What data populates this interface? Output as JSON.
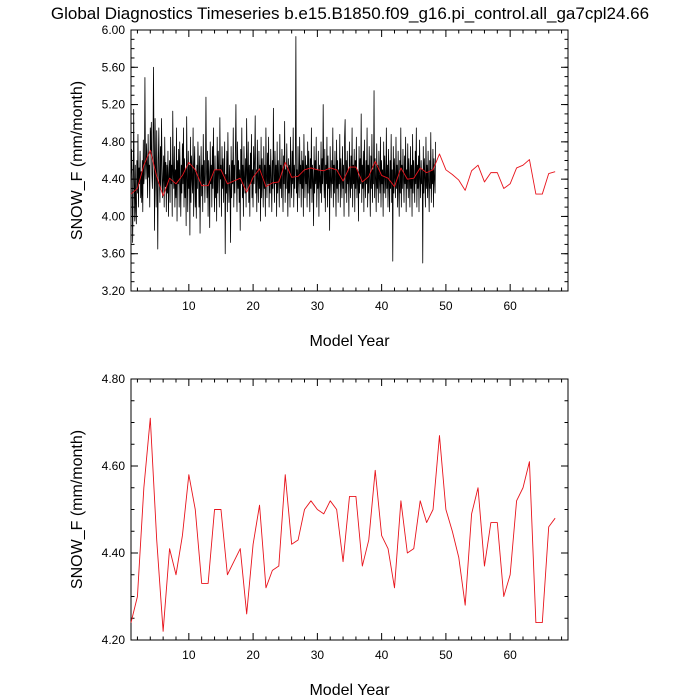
{
  "page": {
    "title": "Global Diagnostics Timeseries b.e15.B1850.f09_g16.pi_control.all_ga7cpl24.66"
  },
  "chart_data": [
    {
      "type": "line",
      "title": "Global Diagnostics Timeseries b.e15.B1850.f09_g16.pi_control.all_ga7cpl24.66",
      "xlabel": "Model Year",
      "ylabel": "SNOW_F (mm/month)",
      "xlim": [
        1,
        69
      ],
      "ylim": [
        3.2,
        6.0
      ],
      "xticks": [
        10,
        20,
        30,
        40,
        50,
        60
      ],
      "yticks": [
        3.2,
        3.6,
        4.0,
        4.4,
        4.8,
        5.2,
        5.6,
        6.0
      ],
      "ytick_labels": [
        "3.20",
        "3.60",
        "4.00",
        "4.40",
        "4.80",
        "5.20",
        "5.60",
        "6.00"
      ],
      "series": [
        {
          "color": "#000000",
          "x_start": 1.0,
          "x_step": 0.0833,
          "values": [
            4.3,
            4.72,
            4.45,
            3.72,
            4.18,
            5.15,
            4.4,
            3.95,
            4.55,
            4.05,
            3.92,
            4.6,
            4.25,
            4.88,
            4.1,
            4.52,
            4.35,
            4.7,
            4.2,
            4.48,
            4.15,
            4.6,
            4.05,
            4.82,
            4.35,
            4.45,
            5.49,
            4.58,
            4.4,
            4.78,
            4.55,
            4.2,
            4.88,
            4.42,
            4.55,
            4.1,
            4.95,
            4.7,
            5.01,
            4.45,
            4.3,
            4.65,
            5.6,
            4.72,
            3.85,
            5.05,
            4.5,
            4.1,
            4.92,
            4.38,
            3.65,
            4.6,
            4.95,
            4.4,
            4.15,
            4.75,
            4.3,
            5.05,
            4.55,
            4.2,
            4.4,
            4.65,
            4.1,
            4.85,
            4.32,
            4.58,
            4.05,
            4.55,
            4.25,
            4.7,
            4.0,
            4.44,
            4.6,
            4.15,
            4.85,
            4.35,
            4.55,
            4.0,
            5.13,
            4.45,
            4.3,
            4.75,
            4.1,
            4.5,
            4.2,
            4.95,
            3.95,
            4.6,
            4.35,
            4.72,
            4.1,
            4.8,
            4.4,
            4.0,
            4.55,
            4.25,
            4.78,
            4.35,
            4.95,
            4.1,
            4.62,
            4.2,
            4.5,
            3.9,
            5.07,
            4.4,
            4.05,
            4.7,
            4.3,
            4.55,
            3.8,
            4.85,
            4.15,
            4.65,
            4.4,
            4.25,
            4.95,
            4.0,
            4.55,
            4.75,
            4.1,
            4.48,
            3.98,
            4.55,
            4.3,
            4.8,
            4.5,
            4.1,
            4.65,
            3.82,
            4.4,
            4.75,
            4.22,
            4.55,
            4.05,
            4.88,
            4.35,
            4.6,
            4.15,
            4.45,
            5.28,
            4.5,
            4.2,
            4.7,
            4.0,
            4.6,
            4.4,
            3.88,
            4.8,
            4.35,
            4.55,
            4.1,
            4.75,
            4.3,
            4.95,
            4.4,
            4.05,
            4.65,
            4.2,
            4.5,
            3.95,
            4.85,
            4.25,
            4.7,
            4.45,
            4.1,
            5.06,
            4.4,
            4.55,
            4.0,
            4.75,
            4.3,
            4.62,
            4.15,
            4.5,
            4.8,
            3.6,
            4.45,
            4.25,
            4.7,
            4.05,
            4.9,
            4.4,
            4.15,
            4.55,
            4.3,
            3.72,
            4.75,
            4.2,
            4.6,
            4.35,
            4.95,
            4.1,
            4.55,
            4.25,
            4.7,
            5.2,
            4.4,
            4.05,
            4.8,
            4.3,
            4.6,
            4.15,
            4.5,
            3.85,
            4.72,
            4.35,
            4.95,
            4.2,
            4.55,
            4.0,
            4.75,
            4.4,
            4.25,
            4.62,
            4.1,
            5.05,
            4.45,
            4.3,
            4.8,
            4.15,
            4.55,
            4.0,
            4.68,
            4.35,
            4.88,
            4.2,
            4.5,
            4.1,
            4.75,
            4.35,
            4.6,
            5.08,
            4.25,
            4.5,
            4.05,
            4.82,
            4.4,
            4.15,
            4.7,
            4.3,
            4.55,
            3.95,
            4.85,
            4.2,
            4.62,
            4.4,
            4.1,
            4.75,
            4.3,
            4.55,
            4.0,
            4.95,
            4.42,
            4.2,
            4.68,
            4.35,
            4.85,
            4.1,
            4.55,
            4.25,
            4.72,
            4.4,
            4.05,
            4.6,
            4.3,
            5.16,
            4.45,
            4.15,
            4.7,
            4.35,
            4.55,
            4.0,
            4.8,
            4.25,
            4.6,
            4.4,
            4.1,
            4.88,
            4.3,
            4.55,
            4.2,
            4.72,
            4.4,
            4.05,
            4.65,
            4.35,
            5.02,
            4.15,
            4.5,
            4.3,
            4.78,
            4.4,
            4.0,
            4.62,
            4.25,
            4.55,
            4.1,
            4.85,
            4.4,
            4.2,
            4.7,
            4.35,
            4.95,
            4.1,
            4.55,
            4.3,
            4.6,
            5.93,
            4.25,
            4.5,
            4.05,
            4.75,
            4.4,
            4.2,
            4.85,
            4.35,
            4.55,
            4.1,
            4.7,
            4.3,
            4.6,
            4.0,
            4.88,
            4.45,
            4.2,
            4.65,
            4.35,
            4.55,
            4.1,
            4.8,
            4.25,
            4.7,
            4.4,
            4.05,
            4.62,
            4.3,
            4.95,
            4.15,
            4.55,
            4.4,
            3.9,
            4.75,
            4.25,
            4.6,
            4.35,
            4.85,
            4.1,
            4.5,
            4.3,
            4.7,
            4.0,
            4.55,
            4.4,
            4.25,
            4.8,
            4.15,
            4.62,
            4.35,
            5.2,
            4.45,
            4.2,
            4.72,
            4.05,
            4.55,
            4.35,
            4.85,
            4.1,
            4.65,
            4.3,
            4.5,
            3.85,
            4.75,
            4.4,
            4.2,
            4.6,
            4.35,
            4.95,
            4.1,
            4.55,
            4.25,
            4.7,
            4.4,
            4.0,
            4.82,
            4.3,
            4.6,
            4.15,
            4.5,
            4.35,
            4.88,
            4.1,
            4.62,
            4.4,
            4.2,
            4.75,
            4.3,
            4.55,
            4.0,
            4.85,
            5.04,
            4.25,
            4.6,
            4.15,
            4.7,
            4.35,
            4.5,
            4.0,
            4.8,
            4.4,
            4.2,
            4.65,
            4.3,
            4.95,
            4.1,
            4.55,
            4.35,
            4.72,
            4.05,
            4.6,
            4.3,
            4.85,
            4.2,
            4.5,
            4.4,
            3.95,
            4.75,
            4.25,
            4.62,
            4.35,
            5.1,
            4.15,
            4.55,
            4.3,
            4.7,
            4.05,
            4.82,
            4.4,
            4.2,
            4.6,
            4.35,
            4.95,
            4.1,
            4.55,
            4.25,
            4.75,
            4.4,
            4.0,
            4.65,
            4.3,
            4.88,
            4.15,
            4.5,
            4.35,
            5.35,
            4.2,
            4.62,
            4.4,
            4.05,
            4.78,
            4.3,
            4.55,
            4.15,
            4.7,
            4.4,
            4.25,
            4.85,
            4.1,
            4.6,
            4.35,
            4.5,
            4.0,
            4.8,
            4.25,
            4.65,
            4.4,
            4.2,
            4.95,
            4.3,
            4.55,
            4.1,
            4.72,
            4.35,
            4.05,
            4.6,
            4.3,
            4.88,
            4.15,
            4.5,
            3.52,
            4.75,
            4.25,
            4.62,
            4.4,
            4.2,
            4.85,
            4.3,
            4.55,
            4.1,
            4.7,
            4.35,
            4.0,
            4.6,
            4.25,
            4.95,
            4.1,
            4.55,
            4.3,
            4.72,
            4.4,
            4.15,
            4.65,
            4.35,
            4.85,
            4.05,
            4.5,
            4.3,
            4.78,
            4.2,
            4.62,
            4.4,
            4.1,
            4.75,
            4.3,
            4.55,
            4.0,
            4.88,
            4.25,
            4.6,
            4.4,
            4.15,
            4.7,
            4.35,
            4.95,
            4.1,
            4.55,
            4.3,
            4.65,
            4.05,
            4.82,
            4.4,
            4.2,
            4.6,
            4.35,
            4.5,
            3.5,
            4.75,
            4.25,
            4.62,
            4.4,
            4.1,
            4.85,
            4.3,
            4.55,
            4.2,
            4.7,
            4.35,
            4.05,
            4.6,
            4.3,
            4.9,
            4.15,
            4.5,
            4.35,
            4.72,
            4.1,
            4.62,
            4.4,
            4.25,
            4.8
          ]
        },
        {
          "color": "#e8141c",
          "x_start": 1.0,
          "x_step": 1.0,
          "values": [
            4.24,
            4.3,
            4.55,
            4.71,
            4.43,
            4.22,
            4.41,
            4.35,
            4.44,
            4.58,
            4.5,
            4.33,
            4.33,
            4.5,
            4.5,
            4.35,
            4.38,
            4.41,
            4.26,
            4.42,
            4.51,
            4.32,
            4.36,
            4.37,
            4.58,
            4.42,
            4.43,
            4.5,
            4.52,
            4.5,
            4.49,
            4.52,
            4.5,
            4.38,
            4.53,
            4.53,
            4.37,
            4.43,
            4.59,
            4.44,
            4.41,
            4.32,
            4.52,
            4.4,
            4.41,
            4.52,
            4.47,
            4.5,
            4.67,
            4.5,
            4.45,
            4.39,
            4.28,
            4.49,
            4.55,
            4.37,
            4.47,
            4.47,
            4.3,
            4.35,
            4.52,
            4.55,
            4.61,
            4.24,
            4.24,
            4.46,
            4.48
          ]
        }
      ]
    },
    {
      "type": "line",
      "xlabel": "Model Year",
      "ylabel": "SNOW_F (mm/month)",
      "xlim": [
        1,
        69
      ],
      "ylim": [
        4.2,
        4.8
      ],
      "xticks": [
        10,
        20,
        30,
        40,
        50,
        60
      ],
      "yticks": [
        4.2,
        4.4,
        4.6,
        4.8
      ],
      "ytick_labels": [
        "4.20",
        "4.40",
        "4.60",
        "4.80"
      ],
      "series": [
        {
          "color": "#e8141c",
          "x_start": 1.0,
          "x_step": 1.0,
          "values": [
            4.24,
            4.3,
            4.55,
            4.71,
            4.43,
            4.22,
            4.41,
            4.35,
            4.44,
            4.58,
            4.5,
            4.33,
            4.33,
            4.5,
            4.5,
            4.35,
            4.38,
            4.41,
            4.26,
            4.42,
            4.51,
            4.32,
            4.36,
            4.37,
            4.58,
            4.42,
            4.43,
            4.5,
            4.52,
            4.5,
            4.49,
            4.52,
            4.5,
            4.38,
            4.53,
            4.53,
            4.37,
            4.43,
            4.59,
            4.44,
            4.41,
            4.32,
            4.52,
            4.4,
            4.41,
            4.52,
            4.47,
            4.5,
            4.67,
            4.5,
            4.45,
            4.39,
            4.28,
            4.49,
            4.55,
            4.37,
            4.47,
            4.47,
            4.3,
            4.35,
            4.52,
            4.55,
            4.61,
            4.24,
            4.24,
            4.46,
            4.48
          ]
        }
      ]
    }
  ]
}
